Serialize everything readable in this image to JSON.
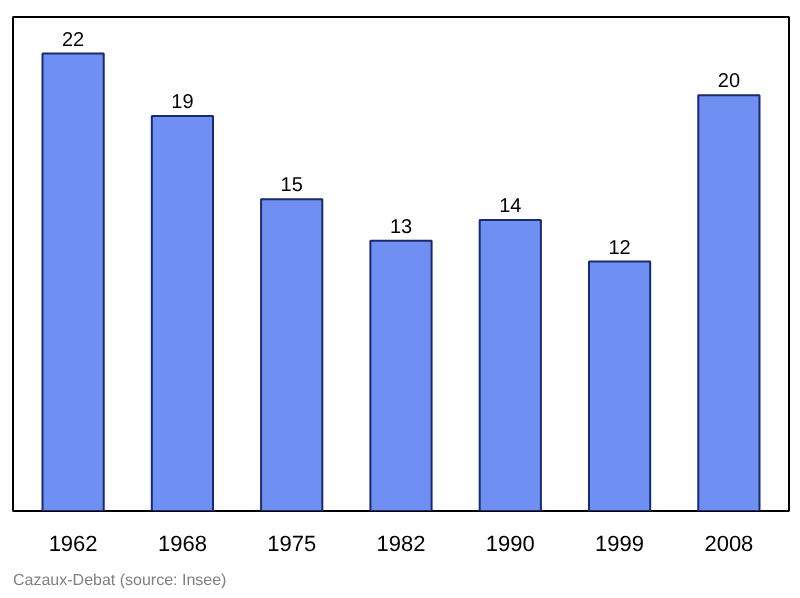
{
  "chart_data": {
    "type": "bar",
    "categories": [
      "1962",
      "1968",
      "1975",
      "1982",
      "1990",
      "1999",
      "2008"
    ],
    "values": [
      22,
      19,
      15,
      13,
      14,
      12,
      20
    ],
    "color": "#6f8ff2",
    "data_labels": true,
    "grid": false,
    "annotations": [
      "Cazaux-Debat   (source: Insee)"
    ]
  }
}
